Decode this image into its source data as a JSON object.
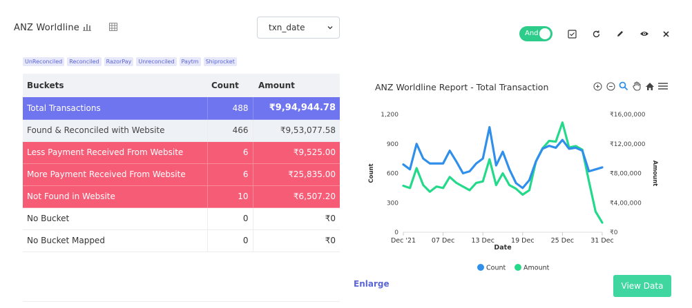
{
  "header": {
    "title": "ANZ Worldline",
    "date_field_select": {
      "value": "txn_date"
    },
    "toggle_label": "And"
  },
  "filters": [
    "UnReconciled",
    "Reconciled",
    "RazorPay",
    "Unreconciled",
    "Paytm",
    "Shiprocket"
  ],
  "table": {
    "headers": [
      "Buckets",
      "Count",
      "Amount"
    ],
    "rows": [
      {
        "bucket": "Total Transactions",
        "count": "488",
        "amount": "₹9,94,944.78"
      },
      {
        "bucket": "Found & Reconciled with Website",
        "count": "466",
        "amount": "₹9,53,077.58"
      },
      {
        "bucket": "Less Payment Received From Website",
        "count": "6",
        "amount": "₹9,525.00"
      },
      {
        "bucket": "More Payment Received From Website",
        "count": "6",
        "amount": "₹25,835.00"
      },
      {
        "bucket": "Not Found in Website",
        "count": "10",
        "amount": "₹6,507.20"
      },
      {
        "bucket": "No Bucket",
        "count": "0",
        "amount": "₹0"
      },
      {
        "bucket": "No Bucket Mapped",
        "count": "0",
        "amount": "₹0"
      }
    ]
  },
  "actions": {
    "enlarge": "Enlarge",
    "view_data": "View Data"
  },
  "colors": {
    "count": "#2f8fea",
    "amount": "#24d98a",
    "total_row": "#6f74ef",
    "alert_row": "#f75c76"
  },
  "chart_data": {
    "type": "line",
    "title": "ANZ Worldline Report - Total Transaction",
    "xlabel": "Date",
    "ylabel": "Count",
    "y2label": "Amount",
    "x_ticks": [
      "Dec '21",
      "07 Dec",
      "13 Dec",
      "19 Dec",
      "25 Dec",
      "31 Dec"
    ],
    "y_ticks": [
      "0",
      "300",
      "600",
      "900",
      "1,200"
    ],
    "y2_ticks": [
      "₹0",
      "₹4,00,000",
      "₹8,00,000",
      "₹12,00,000",
      "₹16,00,000"
    ],
    "ylim": [
      0,
      1200
    ],
    "y2lim": [
      0,
      1600000
    ],
    "x_days": [
      1,
      2,
      3,
      4,
      5,
      6,
      7,
      8,
      9,
      10,
      11,
      12,
      13,
      14,
      15,
      16,
      17,
      18,
      19,
      20,
      21,
      22,
      23,
      24,
      25,
      26,
      27,
      28,
      29,
      30,
      31
    ],
    "series": [
      {
        "name": "Count",
        "axis": "left",
        "values": [
          690,
          640,
          900,
          750,
          700,
          700,
          700,
          830,
          720,
          600,
          620,
          700,
          750,
          1070,
          680,
          820,
          640,
          500,
          450,
          530,
          720,
          850,
          880,
          860,
          940,
          850,
          860,
          830,
          620,
          640,
          660
        ]
      },
      {
        "name": "Amount",
        "axis": "right",
        "values": [
          630000,
          600000,
          870000,
          640000,
          550000,
          620000,
          600000,
          750000,
          670000,
          620000,
          570000,
          670000,
          690000,
          990000,
          640000,
          800000,
          640000,
          590000,
          510000,
          570000,
          960000,
          1140000,
          1240000,
          1230000,
          1490000,
          1150000,
          1170000,
          1120000,
          690000,
          280000,
          130000
        ]
      }
    ],
    "legend": [
      "Count",
      "Amount"
    ],
    "legend_position": "bottom"
  }
}
